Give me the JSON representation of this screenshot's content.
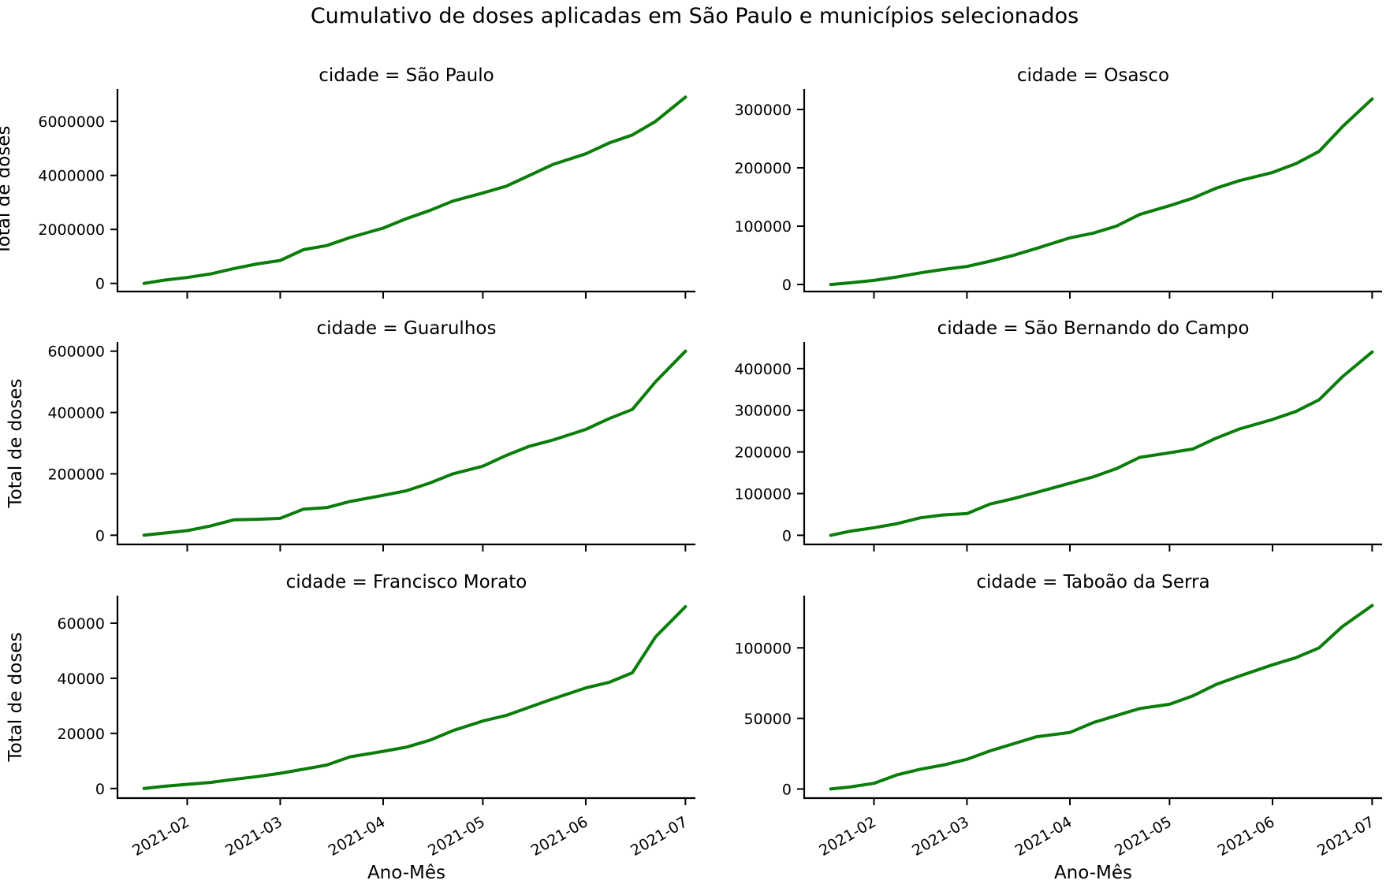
{
  "title": "Cumulativo de doses aplicadas em São Paulo e municípios selecionados",
  "colors": {
    "series": "#0a7d0a",
    "axis": "#000000",
    "background": "#ffffff"
  },
  "chart_data": [
    {
      "type": "line",
      "title": "cidade = São Paulo",
      "xlabel": "",
      "ylabel": "Total de doses",
      "xlim": [
        "2021-01-11",
        "2021-07-04"
      ],
      "ylim": [
        -300000,
        7200000
      ],
      "yticks": [
        0,
        2000000,
        4000000,
        6000000
      ],
      "ytick_labels": [
        "0",
        "2000000",
        "4000000",
        "6000000"
      ],
      "show_xtick_labels": false,
      "series": [
        {
          "x": [
            "2021-01-19",
            "2021-01-25",
            "2021-02-01",
            "2021-02-08",
            "2021-02-15",
            "2021-02-22",
            "2021-03-01",
            "2021-03-08",
            "2021-03-15",
            "2021-03-22",
            "2021-04-01",
            "2021-04-08",
            "2021-04-15",
            "2021-04-22",
            "2021-05-01",
            "2021-05-08",
            "2021-05-15",
            "2021-05-22",
            "2021-06-01",
            "2021-06-08",
            "2021-06-15",
            "2021-06-22",
            "2021-07-01"
          ],
          "y": [
            0,
            120000,
            220000,
            350000,
            550000,
            720000,
            850000,
            1250000,
            1400000,
            1700000,
            2050000,
            2400000,
            2700000,
            3050000,
            3350000,
            3600000,
            4000000,
            4400000,
            4800000,
            5200000,
            5500000,
            6000000,
            6900000
          ]
        }
      ]
    },
    {
      "type": "line",
      "title": "cidade = Osasco",
      "xlabel": "",
      "ylabel": "",
      "xlim": [
        "2021-01-11",
        "2021-07-04"
      ],
      "ylim": [
        -12000,
        335000
      ],
      "yticks": [
        0,
        100000,
        200000,
        300000
      ],
      "ytick_labels": [
        "0",
        "100000",
        "200000",
        "300000"
      ],
      "show_xtick_labels": false,
      "series": [
        {
          "x": [
            "2021-01-19",
            "2021-01-25",
            "2021-02-01",
            "2021-02-08",
            "2021-02-15",
            "2021-02-22",
            "2021-03-01",
            "2021-03-08",
            "2021-03-15",
            "2021-03-22",
            "2021-04-01",
            "2021-04-08",
            "2021-04-15",
            "2021-04-22",
            "2021-05-01",
            "2021-05-08",
            "2021-05-15",
            "2021-05-22",
            "2021-06-01",
            "2021-06-08",
            "2021-06-15",
            "2021-06-22",
            "2021-07-01"
          ],
          "y": [
            0,
            3000,
            7000,
            13000,
            20000,
            26000,
            31000,
            40000,
            50000,
            62000,
            80000,
            88000,
            100000,
            120000,
            135000,
            148000,
            165000,
            178000,
            192000,
            207000,
            228000,
            270000,
            318000
          ]
        }
      ]
    },
    {
      "type": "line",
      "title": "cidade = Guarulhos",
      "xlabel": "",
      "ylabel": "Total de doses",
      "xlim": [
        "2021-01-11",
        "2021-07-04"
      ],
      "ylim": [
        -30000,
        630000
      ],
      "yticks": [
        0,
        200000,
        400000,
        600000
      ],
      "ytick_labels": [
        "0",
        "200000",
        "400000",
        "600000"
      ],
      "show_xtick_labels": false,
      "series": [
        {
          "x": [
            "2021-01-19",
            "2021-01-25",
            "2021-02-01",
            "2021-02-08",
            "2021-02-15",
            "2021-02-22",
            "2021-03-01",
            "2021-03-08",
            "2021-03-15",
            "2021-03-22",
            "2021-04-01",
            "2021-04-08",
            "2021-04-15",
            "2021-04-22",
            "2021-05-01",
            "2021-05-08",
            "2021-05-15",
            "2021-05-22",
            "2021-06-01",
            "2021-06-08",
            "2021-06-15",
            "2021-06-22",
            "2021-07-01"
          ],
          "y": [
            0,
            7000,
            15000,
            30000,
            50000,
            52000,
            55000,
            85000,
            90000,
            110000,
            130000,
            145000,
            170000,
            200000,
            225000,
            260000,
            290000,
            310000,
            345000,
            380000,
            410000,
            500000,
            600000
          ]
        }
      ]
    },
    {
      "type": "line",
      "title": "cidade = São Bernando do Campo",
      "xlabel": "",
      "ylabel": "",
      "xlim": [
        "2021-01-11",
        "2021-07-04"
      ],
      "ylim": [
        -22000,
        464000
      ],
      "yticks": [
        0,
        100000,
        200000,
        300000,
        400000
      ],
      "ytick_labels": [
        "0",
        "100000",
        "200000",
        "300000",
        "400000"
      ],
      "show_xtick_labels": false,
      "series": [
        {
          "x": [
            "2021-01-19",
            "2021-01-25",
            "2021-02-01",
            "2021-02-08",
            "2021-02-15",
            "2021-02-22",
            "2021-03-01",
            "2021-03-08",
            "2021-03-15",
            "2021-03-22",
            "2021-04-01",
            "2021-04-08",
            "2021-04-15",
            "2021-04-22",
            "2021-05-01",
            "2021-05-08",
            "2021-05-15",
            "2021-05-22",
            "2021-06-01",
            "2021-06-08",
            "2021-06-15",
            "2021-06-22",
            "2021-07-01"
          ],
          "y": [
            0,
            10000,
            18000,
            28000,
            42000,
            49000,
            52000,
            75000,
            88000,
            103000,
            125000,
            140000,
            160000,
            187000,
            198000,
            207000,
            233000,
            255000,
            278000,
            297000,
            325000,
            380000,
            440000
          ]
        }
      ]
    },
    {
      "type": "line",
      "title": "cidade = Francisco Morato",
      "xlabel": "Ano-Mês",
      "ylabel": "Total de doses",
      "xlim": [
        "2021-01-11",
        "2021-07-04"
      ],
      "ylim": [
        -3500,
        70000
      ],
      "yticks": [
        0,
        20000,
        40000,
        60000
      ],
      "ytick_labels": [
        "0",
        "20000",
        "40000",
        "60000"
      ],
      "xticks": [
        "2021-02-01",
        "2021-03-01",
        "2021-04-01",
        "2021-05-01",
        "2021-06-01",
        "2021-07-01"
      ],
      "xtick_labels": [
        "2021-02",
        "2021-03",
        "2021-04",
        "2021-05",
        "2021-06",
        "2021-07"
      ],
      "show_xtick_labels": true,
      "series": [
        {
          "x": [
            "2021-01-19",
            "2021-01-25",
            "2021-02-01",
            "2021-02-08",
            "2021-02-15",
            "2021-02-22",
            "2021-03-01",
            "2021-03-08",
            "2021-03-15",
            "2021-03-22",
            "2021-04-01",
            "2021-04-08",
            "2021-04-15",
            "2021-04-22",
            "2021-05-01",
            "2021-05-08",
            "2021-05-15",
            "2021-05-22",
            "2021-06-01",
            "2021-06-08",
            "2021-06-15",
            "2021-06-22",
            "2021-07-01"
          ],
          "y": [
            0,
            800,
            1500,
            2200,
            3300,
            4300,
            5500,
            7000,
            8500,
            11500,
            13500,
            15000,
            17500,
            21000,
            24500,
            26500,
            29500,
            32500,
            36500,
            38500,
            42000,
            55000,
            66000
          ]
        }
      ]
    },
    {
      "type": "line",
      "title": "cidade = Taboão da Serra",
      "xlabel": "Ano-Mês",
      "ylabel": "",
      "xlim": [
        "2021-01-11",
        "2021-07-04"
      ],
      "ylim": [
        -6500,
        137000
      ],
      "yticks": [
        0,
        50000,
        100000
      ],
      "ytick_labels": [
        "0",
        "50000",
        "100000"
      ],
      "xticks": [
        "2021-02-01",
        "2021-03-01",
        "2021-04-01",
        "2021-05-01",
        "2021-06-01",
        "2021-07-01"
      ],
      "xtick_labels": [
        "2021-02",
        "2021-03",
        "2021-04",
        "2021-05",
        "2021-06",
        "2021-07"
      ],
      "show_xtick_labels": true,
      "series": [
        {
          "x": [
            "2021-01-19",
            "2021-01-25",
            "2021-02-01",
            "2021-02-08",
            "2021-02-15",
            "2021-02-22",
            "2021-03-01",
            "2021-03-08",
            "2021-03-15",
            "2021-03-22",
            "2021-04-01",
            "2021-04-08",
            "2021-04-15",
            "2021-04-22",
            "2021-05-01",
            "2021-05-08",
            "2021-05-15",
            "2021-05-22",
            "2021-06-01",
            "2021-06-08",
            "2021-06-15",
            "2021-06-22",
            "2021-07-01"
          ],
          "y": [
            0,
            1500,
            4000,
            10000,
            14000,
            17000,
            21000,
            27000,
            32000,
            37000,
            40000,
            47000,
            52000,
            57000,
            60000,
            66000,
            74000,
            80000,
            88000,
            93000,
            100000,
            115000,
            130000
          ]
        }
      ]
    }
  ]
}
